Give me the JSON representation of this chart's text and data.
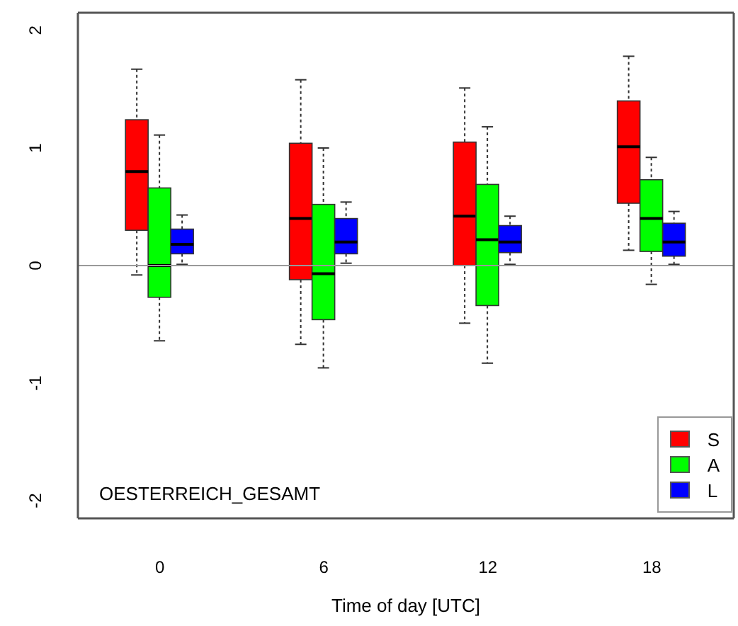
{
  "chart_data": {
    "type": "box",
    "xlabel": "Time of day [UTC]",
    "categories": [
      "0",
      "6",
      "12",
      "18"
    ],
    "ylim": [
      -2.15,
      2.15
    ],
    "yticks": [
      -2,
      -1,
      0,
      1,
      2
    ],
    "grid": false,
    "legend": "bottom right",
    "ref_lines": [
      {
        "axis": "y",
        "value": 0,
        "color": "#999999"
      }
    ],
    "annotations": [
      "OESTERREICH_GESAMT"
    ],
    "series": [
      {
        "name": "S",
        "color": "#ff0000",
        "boxes": [
          {
            "low": -0.08,
            "q1": 0.3,
            "median": 0.8,
            "q3": 1.24,
            "high": 1.67
          },
          {
            "low": -0.67,
            "q1": -0.12,
            "median": 0.4,
            "q3": 1.04,
            "high": 1.58
          },
          {
            "low": -0.49,
            "q1": 0.0,
            "median": 0.42,
            "q3": 1.05,
            "high": 1.51
          },
          {
            "low": 0.13,
            "q1": 0.53,
            "median": 1.01,
            "q3": 1.4,
            "high": 1.78
          }
        ]
      },
      {
        "name": "A",
        "color": "#00ff00",
        "boxes": [
          {
            "low": -0.64,
            "q1": -0.27,
            "median": 0.0,
            "q3": 0.66,
            "high": 1.11
          },
          {
            "low": -0.87,
            "q1": -0.46,
            "median": -0.07,
            "q3": 0.52,
            "high": 1.0
          },
          {
            "low": -0.83,
            "q1": -0.34,
            "median": 0.22,
            "q3": 0.69,
            "high": 1.18
          },
          {
            "low": -0.16,
            "q1": 0.12,
            "median": 0.4,
            "q3": 0.73,
            "high": 0.92
          }
        ]
      },
      {
        "name": "L",
        "color": "#0000ff",
        "boxes": [
          {
            "low": 0.01,
            "q1": 0.1,
            "median": 0.18,
            "q3": 0.31,
            "high": 0.43
          },
          {
            "low": 0.02,
            "q1": 0.1,
            "median": 0.2,
            "q3": 0.4,
            "high": 0.54
          },
          {
            "low": 0.01,
            "q1": 0.11,
            "median": 0.2,
            "q3": 0.34,
            "high": 0.42
          },
          {
            "low": 0.01,
            "q1": 0.08,
            "median": 0.2,
            "q3": 0.36,
            "high": 0.46
          }
        ]
      }
    ]
  }
}
